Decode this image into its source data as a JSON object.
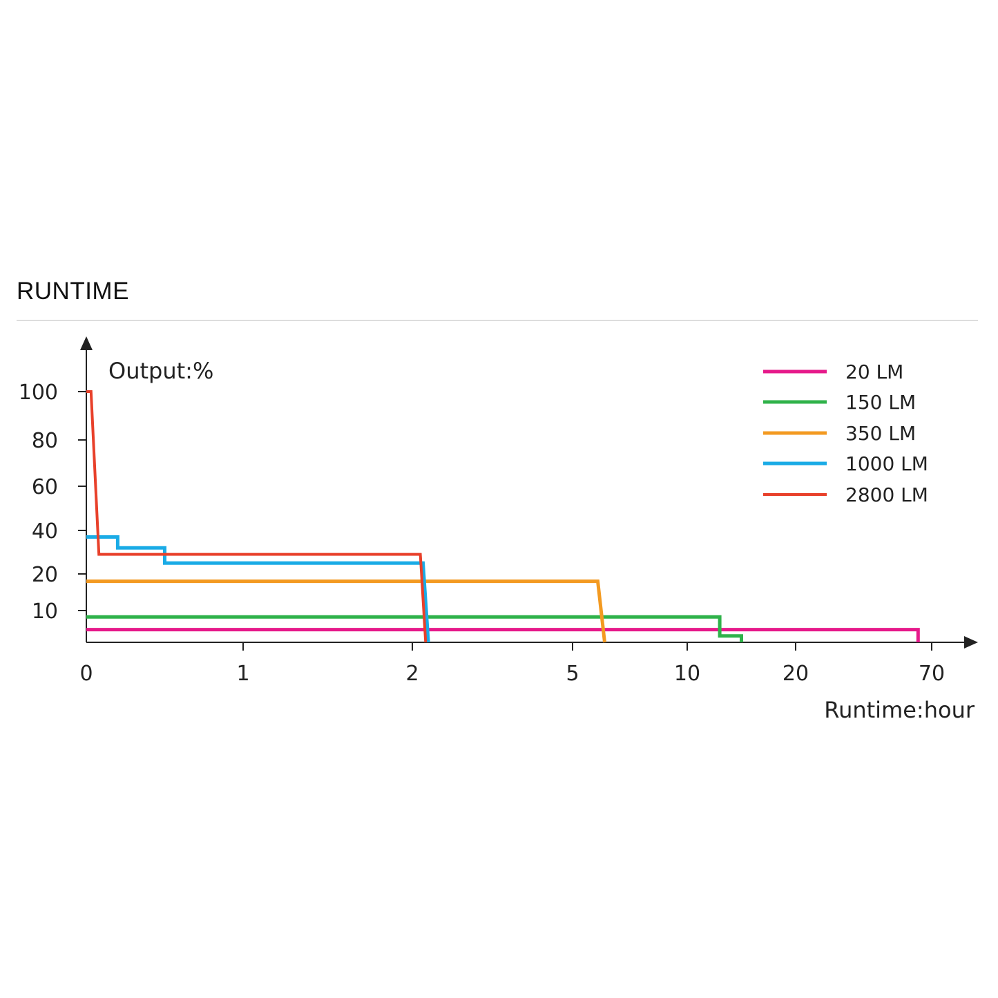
{
  "section": {
    "title": "RUNTIME"
  },
  "chart_data": {
    "type": "line",
    "title": "",
    "ylabel": "Output:%",
    "xlabel": "Runtime:hour",
    "x_scale": "non-linear (tick labels unevenly spaced)",
    "x_ticks": [
      "0",
      "1",
      "2",
      "5",
      "10",
      "20",
      "70"
    ],
    "y_ticks": [
      "10",
      "20",
      "40",
      "60",
      "80",
      "100"
    ],
    "legend_position": "top-right",
    "grid": false,
    "series": [
      {
        "name": "20 LM",
        "color": "#e6198a",
        "points": [
          [
            0,
            4
          ],
          [
            65,
            4
          ],
          [
            65,
            0
          ]
        ]
      },
      {
        "name": "150 LM",
        "color": "#2fb24a",
        "points": [
          [
            0,
            8
          ],
          [
            13,
            8
          ],
          [
            13,
            2
          ],
          [
            15,
            2
          ],
          [
            15,
            0
          ]
        ]
      },
      {
        "name": "350 LM",
        "color": "#f39a21",
        "points": [
          [
            0,
            18
          ],
          [
            6.1,
            18
          ],
          [
            6.4,
            0
          ]
        ]
      },
      {
        "name": "1000 LM",
        "color": "#1aabe6",
        "points": [
          [
            0,
            37
          ],
          [
            0.2,
            37
          ],
          [
            0.2,
            32
          ],
          [
            0.5,
            32
          ],
          [
            0.5,
            25
          ],
          [
            2.2,
            25
          ],
          [
            2.3,
            0
          ]
        ]
      },
      {
        "name": "2800 LM",
        "color": "#e8402a",
        "points": [
          [
            0,
            100
          ],
          [
            0.03,
            100
          ],
          [
            0.08,
            29
          ],
          [
            2.15,
            29
          ],
          [
            2.25,
            0
          ]
        ]
      }
    ]
  }
}
